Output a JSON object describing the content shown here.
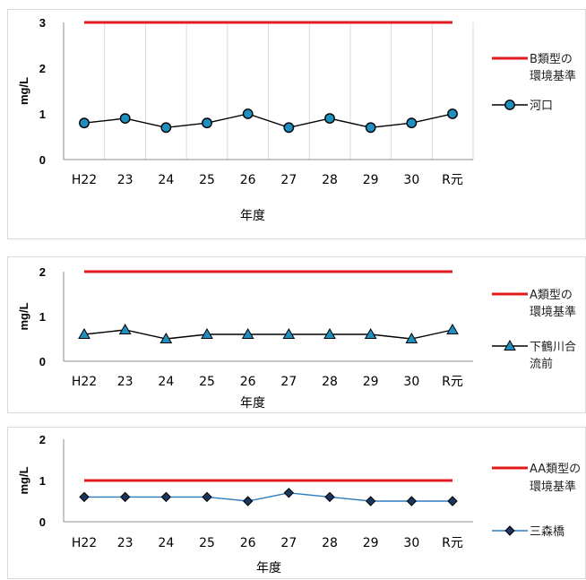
{
  "chart_data": [
    {
      "type": "line",
      "categories": [
        "H22",
        "23",
        "24",
        "25",
        "26",
        "27",
        "28",
        "29",
        "30",
        "R元"
      ],
      "ylim": [
        0,
        3
      ],
      "yticks": [
        "0",
        "1",
        "2",
        "3"
      ],
      "ylabel": "mg/L",
      "xlabel": "年度",
      "grid": "vertical",
      "legend_position": "right",
      "series": [
        {
          "name": "B類型の環境基準",
          "legend_lines": [
            "B類型の",
            "環境基準"
          ],
          "color": "#e31a1c",
          "marker": "none",
          "values": [
            3,
            3,
            3,
            3,
            3,
            3,
            3,
            3,
            3,
            3
          ]
        },
        {
          "name": "河口",
          "legend_lines": [
            "河口"
          ],
          "color": "#000000",
          "marker": "circle",
          "marker_fill": "#1f8fbf",
          "values": [
            0.8,
            0.9,
            0.7,
            0.8,
            1.0,
            0.7,
            0.9,
            0.7,
            0.8,
            1.0
          ]
        }
      ]
    },
    {
      "type": "line",
      "categories": [
        "H22",
        "23",
        "24",
        "25",
        "26",
        "27",
        "28",
        "29",
        "30",
        "R元"
      ],
      "ylim": [
        0,
        2
      ],
      "yticks": [
        "0",
        "1",
        "2"
      ],
      "ylabel": "mg/L",
      "xlabel": "年度",
      "grid": "none",
      "legend_position": "right",
      "series": [
        {
          "name": "A類型の環境基準",
          "legend_lines": [
            "A類型の",
            "環境基準"
          ],
          "color": "#e31a1c",
          "marker": "none",
          "values": [
            2,
            2,
            2,
            2,
            2,
            2,
            2,
            2,
            2,
            2
          ]
        },
        {
          "name": "下鶴川合流前",
          "legend_lines": [
            "下鶴川合",
            "流前"
          ],
          "color": "#000000",
          "marker": "triangle",
          "marker_fill": "#1f8fbf",
          "values": [
            0.6,
            0.7,
            0.5,
            0.6,
            0.6,
            0.6,
            0.6,
            0.6,
            0.5,
            0.7
          ]
        }
      ]
    },
    {
      "type": "line",
      "categories": [
        "H22",
        "23",
        "24",
        "25",
        "26",
        "27",
        "28",
        "29",
        "30",
        "R元"
      ],
      "ylim": [
        0,
        2
      ],
      "yticks": [
        "0",
        "1",
        "2"
      ],
      "ylabel": "mg/L",
      "xlabel": "年度",
      "grid": "none",
      "legend_position": "right",
      "series": [
        {
          "name": "AA類型の環境基準",
          "legend_lines": [
            "AA類型の",
            "環境基準"
          ],
          "color": "#e31a1c",
          "marker": "none",
          "values": [
            1,
            1,
            1,
            1,
            1,
            1,
            1,
            1,
            1,
            1
          ]
        },
        {
          "name": "三森橋",
          "legend_lines": [
            "三森橋"
          ],
          "color": "#2b7bbf",
          "marker": "diamond",
          "marker_fill": "#17375e",
          "values": [
            0.6,
            0.6,
            0.6,
            0.6,
            0.5,
            0.7,
            0.6,
            0.5,
            0.5,
            0.5
          ]
        }
      ]
    }
  ]
}
